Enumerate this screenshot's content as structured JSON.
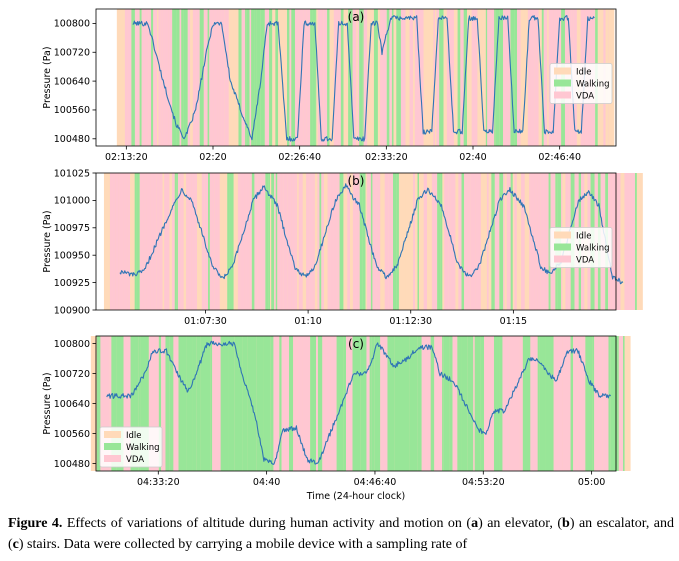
{
  "figure": {
    "caption": {
      "label": "Figure 4.",
      "parts": [
        {
          "t": "  Effects of variations of altitude during human activity and motion on (",
          "b": false
        },
        {
          "t": "a",
          "b": true
        },
        {
          "t": ") an elevator, (",
          "b": false
        },
        {
          "t": "b",
          "b": true
        },
        {
          "t": ") an escalator, and (",
          "b": false
        },
        {
          "t": "c",
          "b": true
        },
        {
          "t": ") stairs. Data were collected by carrying a mobile device with a sampling rate of",
          "b": false
        }
      ]
    },
    "xlabel": "Time (24-hour clock)",
    "colors": {
      "Idle": "#ffdab9",
      "Walking": "#98e698",
      "VDA": "#ffc7d2",
      "line": "#2f75b5"
    }
  },
  "chart_data": [
    {
      "type": "line",
      "title": "(a)",
      "xlabel": "",
      "ylabel": "Pressure (Pa)",
      "xlim": [
        "02:11:00",
        "02:51:00"
      ],
      "ylim": [
        100460,
        100840
      ],
      "xticks": [
        "02:13:20",
        "02:20",
        "02:26:40",
        "02:33:20",
        "02:40",
        "02:46:40"
      ],
      "yticks": [
        100480,
        100560,
        100640,
        100720,
        100800
      ],
      "legend": {
        "position": "right",
        "entries": [
          "Idle",
          "Walking",
          "VDA"
        ]
      },
      "activity_background": {
        "Idle": "light orange",
        "Walking": "light green",
        "VDA": "light pink"
      },
      "series": [
        {
          "points": [
            [
              "02:13:50",
              100800
            ],
            [
              "02:15:00",
              100800
            ],
            [
              "02:16:10",
              100640
            ],
            [
              "02:17:10",
              100520
            ],
            [
              "02:17:50",
              100480
            ],
            [
              "02:18:40",
              100560
            ],
            [
              "02:19:30",
              100720
            ],
            [
              "02:20:00",
              100800
            ],
            [
              "02:20:40",
              100800
            ],
            [
              "02:21:20",
              100640
            ],
            [
              "02:22:20",
              100540
            ],
            [
              "02:23:00",
              100480
            ],
            [
              "02:23:40",
              100640
            ],
            [
              "02:24:10",
              100800
            ],
            [
              "02:25:00",
              100800
            ],
            [
              "02:25:40",
              100480
            ],
            [
              "02:26:30",
              100480
            ],
            [
              "02:27:00",
              100800
            ],
            [
              "02:27:50",
              100800
            ],
            [
              "02:28:20",
              100480
            ],
            [
              "02:29:10",
              100480
            ],
            [
              "02:29:40",
              100800
            ],
            [
              "02:30:20",
              100800
            ],
            [
              "02:30:50",
              100480
            ],
            [
              "02:31:40",
              100480
            ],
            [
              "02:32:10",
              100800
            ],
            [
              "02:32:40",
              100800
            ],
            [
              "02:33:00",
              100720
            ],
            [
              "02:33:40",
              100815
            ],
            [
              "02:35:40",
              100815
            ],
            [
              "02:36:10",
              100500
            ],
            [
              "02:36:50",
              100500
            ],
            [
              "02:37:20",
              100815
            ],
            [
              "02:38:00",
              100815
            ],
            [
              "02:38:30",
              100500
            ],
            [
              "02:39:10",
              100500
            ],
            [
              "02:39:40",
              100815
            ],
            [
              "02:40:20",
              100815
            ],
            [
              "02:40:50",
              100500
            ],
            [
              "02:41:30",
              100500
            ],
            [
              "02:42:00",
              100815
            ],
            [
              "02:42:40",
              100815
            ],
            [
              "02:43:10",
              100500
            ],
            [
              "02:43:50",
              100500
            ],
            [
              "02:44:20",
              100815
            ],
            [
              "02:45:00",
              100815
            ],
            [
              "02:45:30",
              100500
            ],
            [
              "02:46:10",
              100500
            ],
            [
              "02:46:40",
              100815
            ],
            [
              "02:47:20",
              100815
            ],
            [
              "02:47:50",
              100500
            ],
            [
              "02:48:20",
              100500
            ],
            [
              "02:48:50",
              100815
            ],
            [
              "02:49:20",
              100815
            ]
          ]
        }
      ]
    },
    {
      "type": "line",
      "title": "(b)",
      "xlabel": "",
      "ylabel": "Pressure (Pa)",
      "xlim": [
        "01:04:50",
        "01:17:30"
      ],
      "ylim": [
        100900,
        101025
      ],
      "xticks": [
        "01:07:30",
        "01:10",
        "01:12:30",
        "01:15"
      ],
      "yticks": [
        100900,
        100925,
        100950,
        100975,
        101000,
        101025
      ],
      "legend": {
        "position": "right",
        "entries": [
          "Idle",
          "Walking",
          "VDA"
        ]
      },
      "activity_background": {
        "Idle": "light orange",
        "Walking": "light green",
        "VDA": "light pink"
      },
      "series": [
        {
          "points": [
            [
              "01:05:25",
              100935
            ],
            [
              "01:05:45",
              100932
            ],
            [
              "01:06:00",
              100935
            ],
            [
              "01:06:35",
              100985
            ],
            [
              "01:06:55",
              101010
            ],
            [
              "01:07:10",
              101000
            ],
            [
              "01:07:40",
              100940
            ],
            [
              "01:07:55",
              100928
            ],
            [
              "01:08:10",
              100940
            ],
            [
              "01:08:40",
              101000
            ],
            [
              "01:08:55",
              101013
            ],
            [
              "01:09:15",
              100995
            ],
            [
              "01:09:40",
              100940
            ],
            [
              "01:09:55",
              100930
            ],
            [
              "01:10:10",
              100940
            ],
            [
              "01:10:40",
              101000
            ],
            [
              "01:10:55",
              101013
            ],
            [
              "01:11:15",
              100995
            ],
            [
              "01:11:40",
              100940
            ],
            [
              "01:11:55",
              100930
            ],
            [
              "01:12:10",
              100940
            ],
            [
              "01:12:40",
              101000
            ],
            [
              "01:12:55",
              101010
            ],
            [
              "01:13:15",
              100995
            ],
            [
              "01:13:40",
              100940
            ],
            [
              "01:13:55",
              100930
            ],
            [
              "01:14:10",
              100940
            ],
            [
              "01:14:40",
              101000
            ],
            [
              "01:14:55",
              101010
            ],
            [
              "01:15:15",
              100995
            ],
            [
              "01:15:40",
              100940
            ],
            [
              "01:15:55",
              100932
            ],
            [
              "01:16:10",
              100945
            ],
            [
              "01:16:35",
              101000
            ],
            [
              "01:16:50",
              101008
            ],
            [
              "01:17:05",
              100995
            ],
            [
              "01:17:25",
              100930
            ],
            [
              "01:17:40",
              100925
            ]
          ]
        }
      ]
    },
    {
      "type": "line",
      "title": "(c)",
      "xlabel": "Time (24-hour clock)",
      "ylabel": "Pressure (Pa)",
      "xlim": [
        "04:29:30",
        "05:01:30"
      ],
      "ylim": [
        100460,
        100820
      ],
      "xticks": [
        "04:33:20",
        "04:40",
        "04:46:40",
        "04:53:20",
        "05:00"
      ],
      "yticks": [
        100480,
        100560,
        100640,
        100720,
        100800
      ],
      "legend": {
        "position": "lower left",
        "entries": [
          "Idle",
          "Walking",
          "VDA"
        ]
      },
      "activity_background": {
        "Idle": "light orange",
        "Walking": "light green",
        "VDA": "light pink"
      },
      "series": [
        {
          "points": [
            [
              "04:30:10",
              100660
            ],
            [
              "04:31:40",
              100660
            ],
            [
              "04:32:30",
              100720
            ],
            [
              "04:33:00",
              100780
            ],
            [
              "04:33:50",
              100780
            ],
            [
              "04:34:30",
              100720
            ],
            [
              "04:35:10",
              100670
            ],
            [
              "04:35:40",
              100720
            ],
            [
              "04:36:20",
              100800
            ],
            [
              "04:38:00",
              100800
            ],
            [
              "04:38:30",
              100720
            ],
            [
              "04:39:20",
              100600
            ],
            [
              "04:39:50",
              100490
            ],
            [
              "04:40:30",
              100480
            ],
            [
              "04:41:00",
              100570
            ],
            [
              "04:41:50",
              100575
            ],
            [
              "04:42:30",
              100490
            ],
            [
              "04:43:10",
              100480
            ],
            [
              "04:44:00",
              100570
            ],
            [
              "04:44:50",
              100660
            ],
            [
              "04:45:20",
              100720
            ],
            [
              "04:46:10",
              100720
            ],
            [
              "04:46:50",
              100800
            ],
            [
              "04:47:20",
              100770
            ],
            [
              "04:47:50",
              100740
            ],
            [
              "04:48:40",
              100760
            ],
            [
              "04:49:20",
              100790
            ],
            [
              "04:50:10",
              100790
            ],
            [
              "04:50:40",
              100720
            ],
            [
              "04:51:30",
              100700
            ],
            [
              "04:52:20",
              100630
            ],
            [
              "04:53:00",
              100570
            ],
            [
              "04:53:30",
              100560
            ],
            [
              "04:54:00",
              100620
            ],
            [
              "04:54:40",
              100620
            ],
            [
              "04:55:30",
              100700
            ],
            [
              "04:56:10",
              100760
            ],
            [
              "04:56:40",
              100760
            ],
            [
              "04:57:20",
              100720
            ],
            [
              "04:57:50",
              100700
            ],
            [
              "04:58:30",
              100780
            ],
            [
              "04:59:10",
              100780
            ],
            [
              "04:59:50",
              100700
            ],
            [
              "05:00:30",
              100660
            ],
            [
              "05:01:10",
              100660
            ]
          ]
        }
      ]
    }
  ]
}
